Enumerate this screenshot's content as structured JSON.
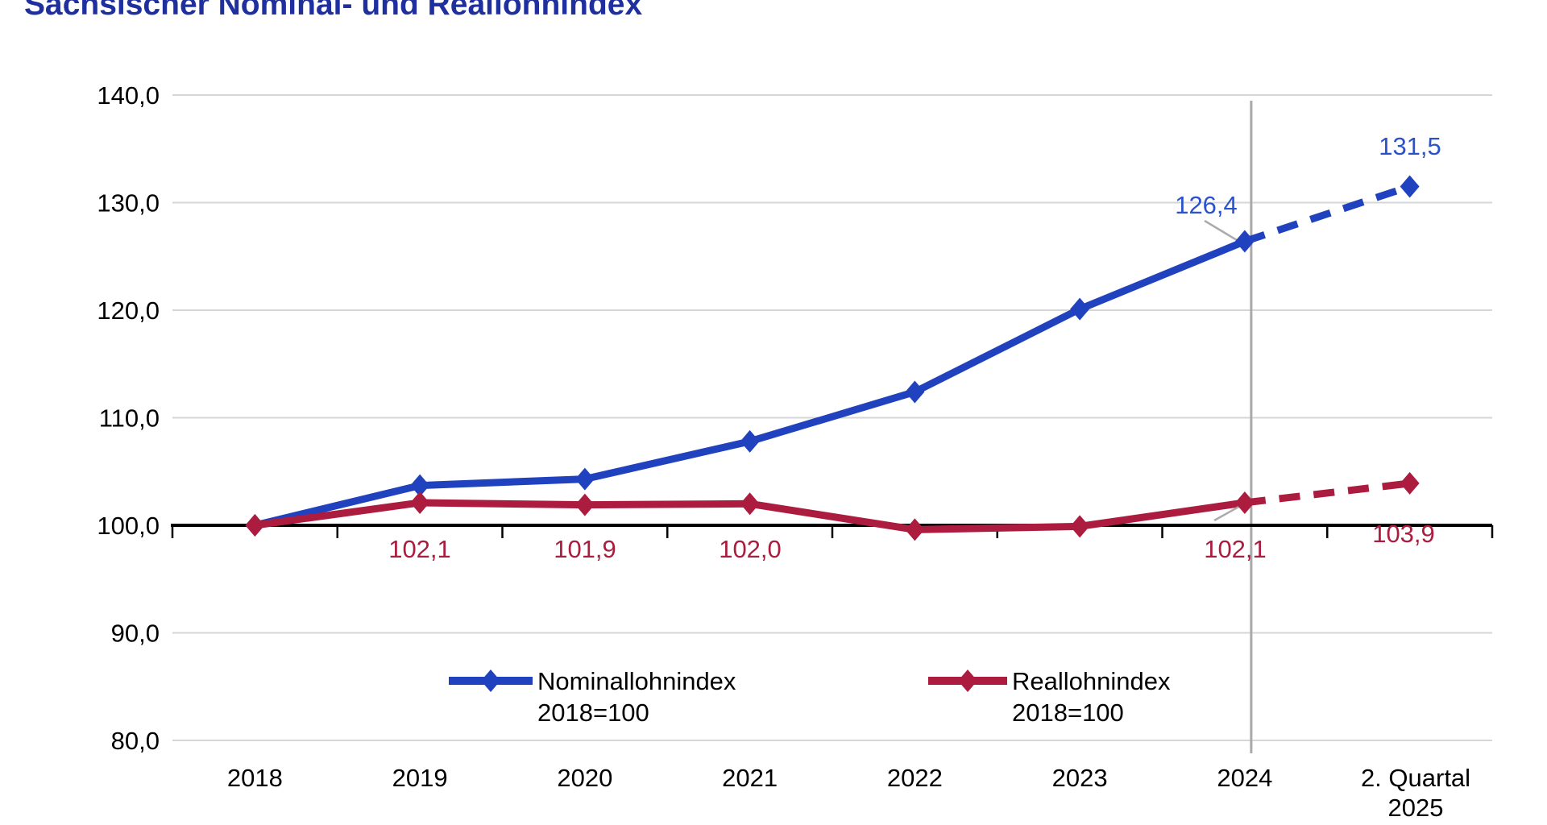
{
  "title": "Sächsischer Nominal- und Reallohnindex",
  "title_color": "#1F2F9E",
  "background": "#FFFFFF",
  "chart_data": {
    "type": "line",
    "title": "Sächsischer Nominal- und Reallohnindex",
    "categories": [
      "2018",
      "2019",
      "2020",
      "2021",
      "2022",
      "2023",
      "2024",
      "2. Quartal 2025"
    ],
    "x_tick_labels": [
      [
        "2018"
      ],
      [
        "2019"
      ],
      [
        "2020"
      ],
      [
        "2021"
      ],
      [
        "2022"
      ],
      [
        "2023"
      ],
      [
        "2024"
      ],
      [
        "2. Quartal",
        "2025"
      ]
    ],
    "ylim": [
      80,
      140
    ],
    "ytick_step": 10,
    "ytick_labels": [
      "140,0",
      "130,0",
      "120,0",
      "110,0",
      "100,0",
      "90,0",
      "80,0"
    ],
    "grid": true,
    "legend_position": "bottom-center",
    "baseline_note": "2018=100",
    "forecast_divider_at_category": "2024",
    "dashed_segment_meaning": "vorläufig / Quartalswert ab 2024",
    "colors": {
      "nominal_line": "#2142BE",
      "nominal_label": "#2A52CC",
      "real_line": "#AC1C3F",
      "real_label": "#AC1C3F",
      "grid": "#D6D6D6",
      "axis": "#000000",
      "divider": "#A9A9A9",
      "leader": "#ABABAB",
      "tick_text": "#000000"
    },
    "series": [
      {
        "id": "nominallohnindex",
        "name": "Nominallohnindex 2018=100",
        "color": "#2142BE",
        "label_color": "#2A52CC",
        "values": [
          100.0,
          103.7,
          104.3,
          107.8,
          112.4,
          120.1,
          126.4,
          131.5
        ],
        "dashed_from_index": 6,
        "point_labels": {
          "6": "126,4",
          "7": "131,5"
        }
      },
      {
        "id": "reallohnindex",
        "name": "Reallohnindex 2018=100",
        "color": "#AC1C3F",
        "label_color": "#AC1C3F",
        "values": [
          100.0,
          102.1,
          101.9,
          102.0,
          99.6,
          99.9,
          102.1,
          103.9
        ],
        "dashed_from_index": 6,
        "point_labels": {
          "1": "102,1",
          "2": "101,9",
          "3": "102,0",
          "6": "102,1",
          "7": "103,9"
        }
      }
    ],
    "legend": [
      {
        "line1": "Nominallohnindex",
        "line2": "2018=100"
      },
      {
        "line1": "Reallohnindex",
        "line2": "2018=100"
      }
    ]
  }
}
